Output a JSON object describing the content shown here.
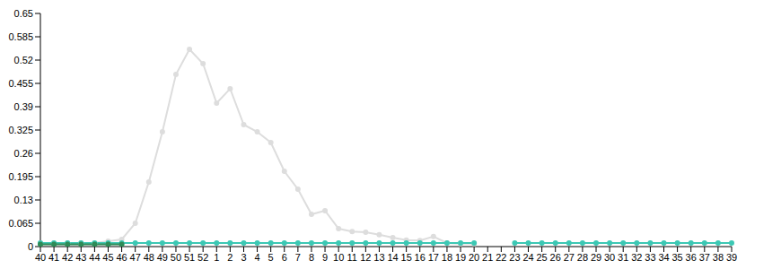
{
  "chart_data": {
    "type": "line",
    "categories": [
      "40",
      "41",
      "42",
      "43",
      "44",
      "45",
      "46",
      "47",
      "48",
      "49",
      "50",
      "51",
      "52",
      "1",
      "2",
      "3",
      "4",
      "5",
      "6",
      "7",
      "8",
      "9",
      "10",
      "11",
      "12",
      "13",
      "14",
      "15",
      "16",
      "17",
      "18",
      "19",
      "20",
      "21",
      "22",
      "23",
      "24",
      "25",
      "26",
      "27",
      "28",
      "29",
      "30",
      "31",
      "32",
      "33",
      "34",
      "35",
      "36",
      "37",
      "38",
      "39"
    ],
    "ylim": [
      0,
      0.65
    ],
    "yticks": [
      0,
      0.065,
      0.13,
      0.195,
      0.26,
      0.325,
      0.39,
      0.455,
      0.52,
      0.585,
      0.65
    ],
    "grid": false,
    "marker": "circle",
    "series": [
      {
        "color": "#dddddd",
        "values": [
          0.01,
          0.01,
          0.01,
          0.01,
          0.01,
          0.015,
          0.02,
          0.065,
          0.18,
          0.32,
          0.48,
          0.55,
          0.51,
          0.4,
          0.44,
          0.34,
          0.32,
          0.29,
          0.21,
          0.16,
          0.09,
          0.1,
          0.05,
          0.042,
          0.04,
          0.033,
          0.025,
          0.018,
          0.017,
          0.028,
          0.01,
          0.008,
          0.008,
          null,
          null,
          null,
          null,
          null,
          null,
          null,
          null,
          null,
          null,
          null,
          null,
          null,
          null,
          null,
          null,
          null,
          null,
          null
        ]
      },
      {
        "color": "#3cc8b4",
        "values": [
          0.01,
          0.01,
          0.01,
          0.01,
          0.01,
          0.01,
          0.01,
          0.01,
          0.01,
          0.01,
          0.01,
          0.01,
          0.01,
          0.01,
          0.01,
          0.01,
          0.01,
          0.01,
          0.01,
          0.01,
          0.01,
          0.01,
          0.01,
          0.01,
          0.01,
          0.01,
          0.01,
          0.01,
          0.01,
          0.01,
          0.01,
          0.01,
          0.01,
          null,
          null,
          0.01,
          0.01,
          0.01,
          0.01,
          0.01,
          0.01,
          0.01,
          0.01,
          0.01,
          0.01,
          0.01,
          0.01,
          0.01,
          0.01,
          0.01,
          0.01,
          0.01
        ]
      },
      {
        "color": "#2e8b57",
        "values": [
          0.006,
          0.006,
          0.006,
          0.006,
          0.006,
          0.006,
          0.006,
          null,
          null,
          null,
          null,
          null,
          null,
          null,
          null,
          null,
          null,
          null,
          null,
          null,
          null,
          null,
          null,
          null,
          null,
          null,
          null,
          null,
          null,
          null,
          null,
          null,
          null,
          null,
          null,
          null,
          null,
          null,
          null,
          null,
          null,
          null,
          null,
          null,
          null,
          null,
          null,
          null,
          null,
          null,
          null,
          null
        ]
      }
    ]
  }
}
